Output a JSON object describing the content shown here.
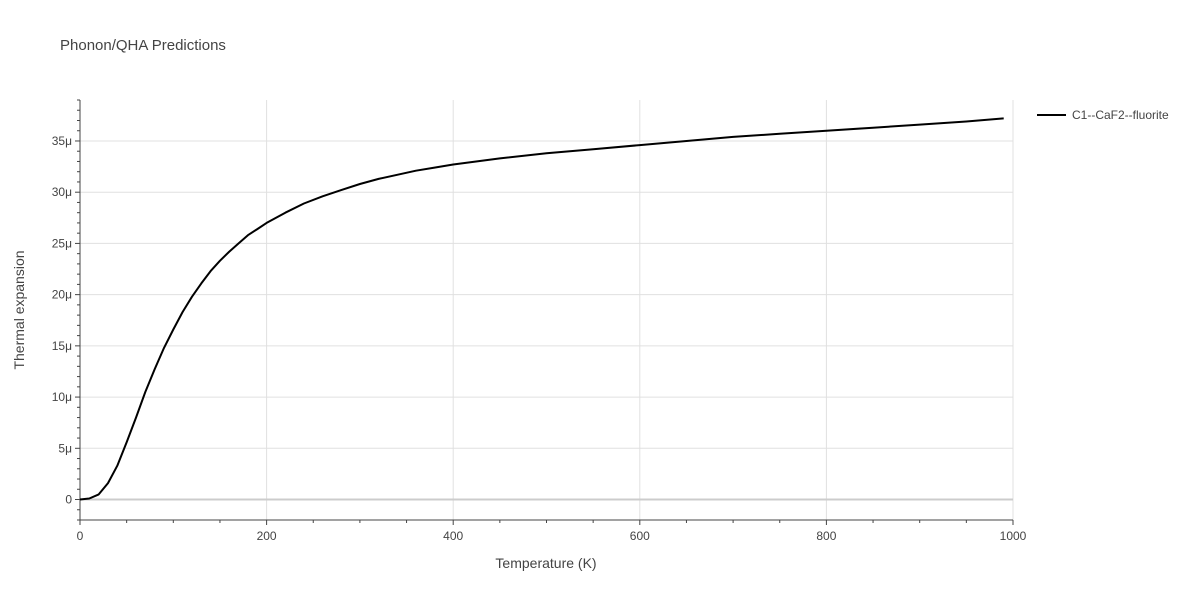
{
  "chart_data": {
    "type": "line",
    "title": "Phonon/QHA Predictions",
    "xlabel": "Temperature (K)",
    "ylabel": "Thermal expansion",
    "xlim": [
      0,
      1000
    ],
    "ylim": [
      -2,
      39
    ],
    "x_ticks": [
      0,
      200,
      400,
      600,
      800,
      1000
    ],
    "x_tick_labels": [
      "0",
      "200",
      "400",
      "600",
      "800",
      "1000"
    ],
    "y_ticks": [
      0,
      5,
      10,
      15,
      20,
      25,
      30,
      35
    ],
    "y_tick_labels": [
      "0",
      "5μ",
      "10μ",
      "15μ",
      "20μ",
      "25μ",
      "30μ",
      "35μ"
    ],
    "grid": true,
    "legend_position": "top-right",
    "series": [
      {
        "name": "C1--CaF2--fluorite",
        "color": "#000000",
        "x": [
          0,
          10,
          20,
          30,
          40,
          50,
          60,
          70,
          80,
          90,
          100,
          110,
          120,
          130,
          140,
          150,
          160,
          170,
          180,
          190,
          200,
          220,
          240,
          260,
          280,
          300,
          320,
          340,
          360,
          380,
          400,
          450,
          500,
          550,
          600,
          650,
          700,
          750,
          800,
          850,
          900,
          950,
          990
        ],
        "values": [
          0,
          0.1,
          0.5,
          1.6,
          3.3,
          5.6,
          8.0,
          10.5,
          12.7,
          14.8,
          16.6,
          18.3,
          19.8,
          21.1,
          22.3,
          23.3,
          24.2,
          25.0,
          25.8,
          26.4,
          27.0,
          28.0,
          28.9,
          29.6,
          30.2,
          30.8,
          31.3,
          31.7,
          32.1,
          32.4,
          32.7,
          33.3,
          33.8,
          34.2,
          34.6,
          35.0,
          35.4,
          35.7,
          36.0,
          36.3,
          36.6,
          36.9,
          37.2
        ]
      }
    ]
  }
}
